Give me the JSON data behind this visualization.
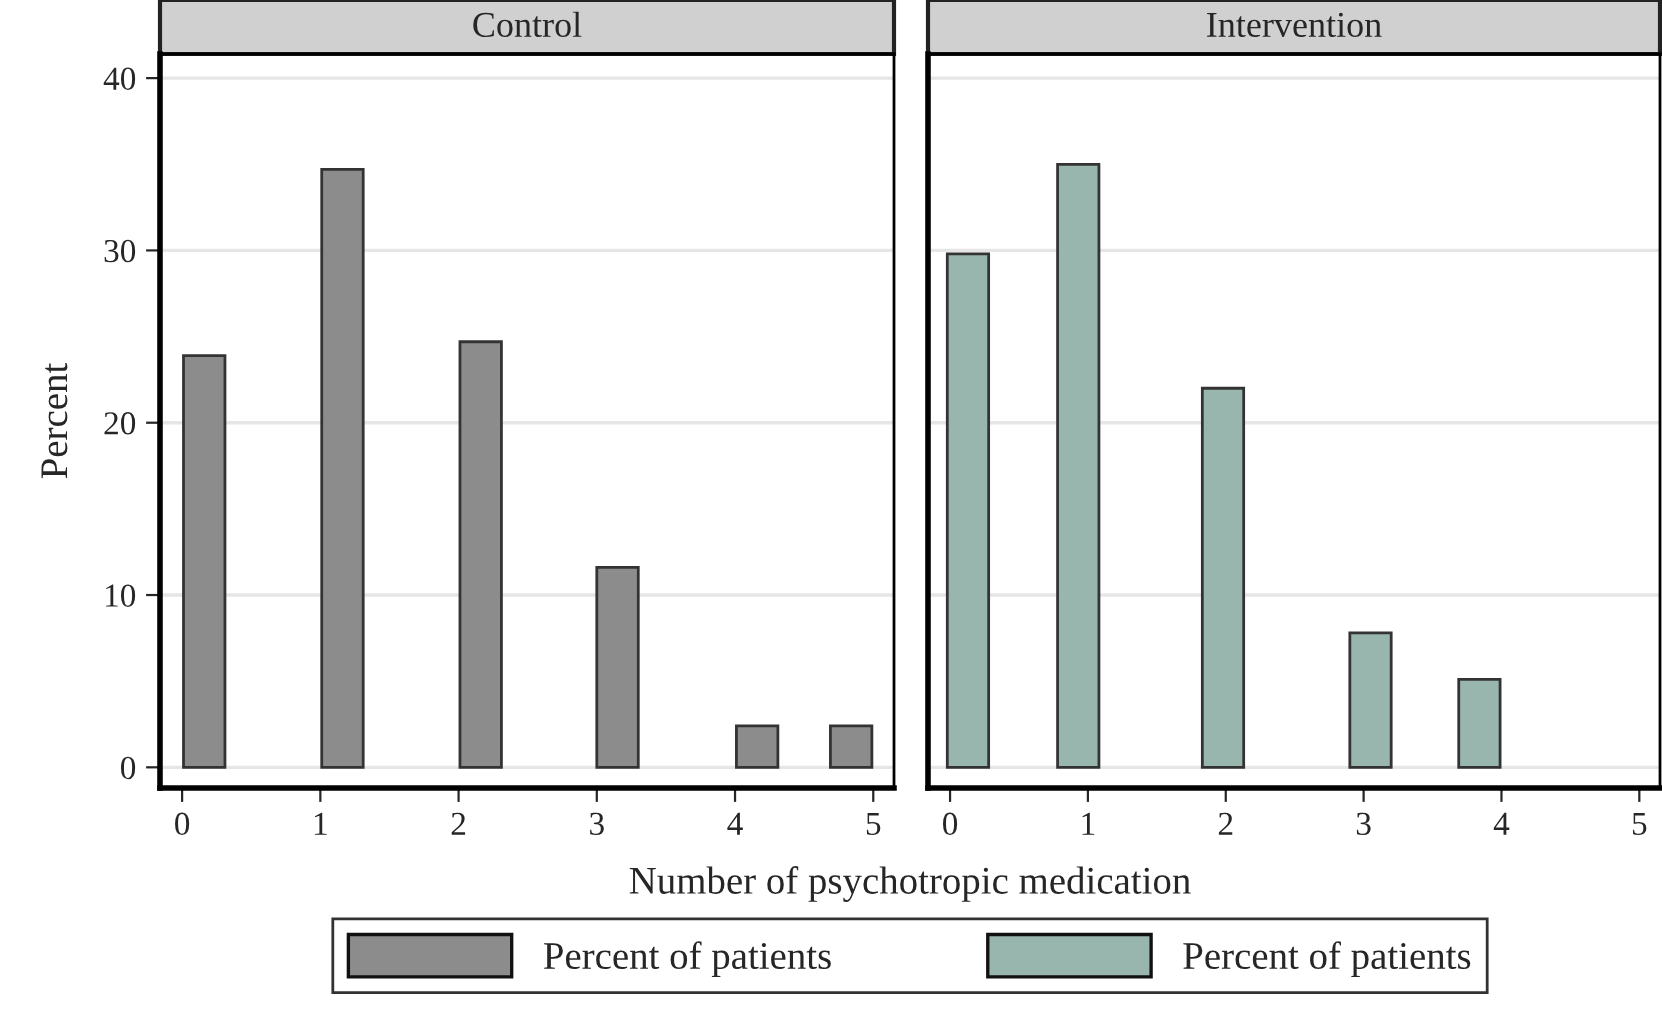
{
  "chart_data": [
    {
      "type": "bar",
      "title": "Control",
      "xlabel": "Number of psychotropic medication",
      "ylabel": "Percent",
      "series": [
        {
          "name": "Percent of patients",
          "color": "#8c8c8c",
          "x": [
            0.16,
            1.16,
            2.16,
            3.15,
            4.16,
            4.84
          ],
          "values": [
            23.9,
            34.7,
            24.7,
            11.6,
            2.4,
            2.4
          ]
        }
      ],
      "xlim": [
        -0.16,
        5.15
      ],
      "xticks": [
        0,
        1,
        2,
        3,
        4,
        5
      ],
      "ylim": [
        -1.2,
        41.4
      ],
      "yticks": [
        0,
        10,
        20,
        30,
        40
      ],
      "grid": "y",
      "legend": "bottom"
    },
    {
      "type": "bar",
      "title": "Intervention",
      "series": [
        {
          "name": "Percent of patients",
          "color": "#98b5ae",
          "x": [
            0.13,
            0.93,
            1.98,
            3.05,
            3.84
          ],
          "values": [
            29.8,
            35.0,
            22.0,
            7.8,
            5.1
          ]
        }
      ],
      "xlim": [
        -0.16,
        5.15
      ],
      "xticks": [
        0,
        1,
        2,
        3,
        4,
        5
      ],
      "ylim": [
        -1.2,
        41.4
      ],
      "yticks": [
        0,
        10,
        20,
        30,
        40
      ],
      "grid": "y",
      "legend": "bottom",
      "tick_labels": "x"
    }
  ]
}
